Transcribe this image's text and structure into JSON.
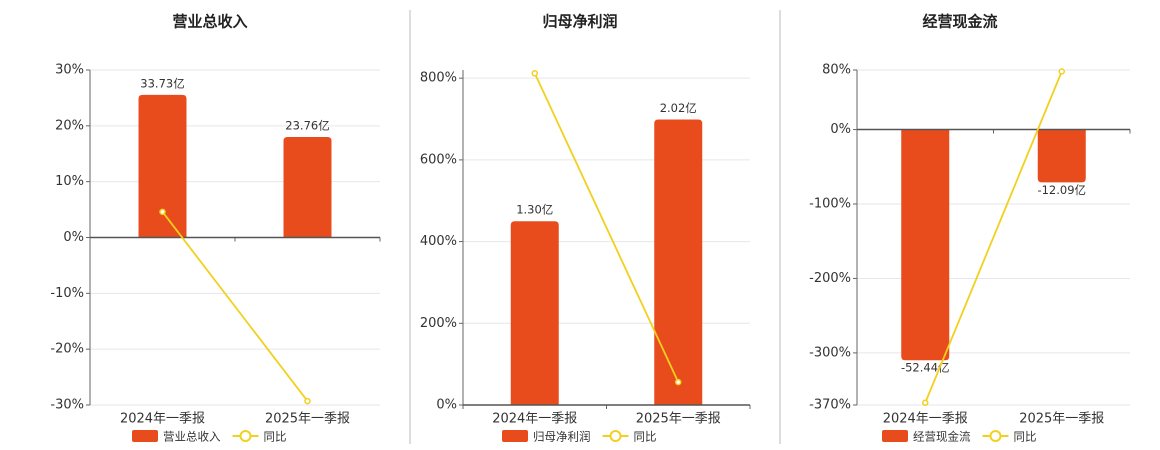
{
  "chart_data": [
    {
      "type": "bar",
      "title": "营业总收入",
      "categories": [
        "2024年一季报",
        "2025年一季报"
      ],
      "ylim": [
        -30,
        30
      ],
      "yticks": [
        {
          "value": -30,
          "label": "-30%"
        },
        {
          "value": -20,
          "label": "-20%"
        },
        {
          "value": -10,
          "label": "-10%"
        },
        {
          "value": 0,
          "label": "0%"
        },
        {
          "value": 10,
          "label": "10%"
        },
        {
          "value": 20,
          "label": "20%"
        },
        {
          "value": 30,
          "label": "30%"
        }
      ],
      "y2lim": [
        -39.6,
        39.6
      ],
      "grid": true,
      "series": [
        {
          "name": "营业总收入",
          "type": "bar",
          "axis": "y2",
          "color": "#e84c1c",
          "values": [
            33.73,
            23.76
          ],
          "value_labels": [
            "33.73亿",
            "23.76亿"
          ]
        },
        {
          "name": "同比",
          "type": "line",
          "color": "#f2d01e",
          "values": [
            4.6,
            -29.3
          ]
        }
      ]
    },
    {
      "type": "bar",
      "title": "归母净利润",
      "categories": [
        "2024年一季报",
        "2025年一季报"
      ],
      "ylim": [
        0,
        820
      ],
      "yticks": [
        {
          "value": 0,
          "label": "0%"
        },
        {
          "value": 200,
          "label": "200%"
        },
        {
          "value": 400,
          "label": "400%"
        },
        {
          "value": 600,
          "label": "600%"
        },
        {
          "value": 800,
          "label": "800%"
        }
      ],
      "y2lim": [
        0,
        2.37
      ],
      "grid": true,
      "series": [
        {
          "name": "归母净利润",
          "type": "bar",
          "axis": "y2",
          "color": "#e84c1c",
          "values": [
            1.3,
            2.02
          ],
          "value_labels": [
            "1.30亿",
            "2.02亿"
          ]
        },
        {
          "name": "同比",
          "type": "line",
          "color": "#f2d01e",
          "values": [
            812,
            56
          ]
        }
      ]
    },
    {
      "type": "bar",
      "title": "经营现金流",
      "categories": [
        "2024年一季报",
        "2025年一季报"
      ],
      "ylim": [
        -370,
        80
      ],
      "yticks": [
        {
          "value": -370,
          "label": "-370%"
        },
        {
          "value": -300,
          "label": "-300%"
        },
        {
          "value": -200,
          "label": "-200%"
        },
        {
          "value": -100,
          "label": "-100%"
        },
        {
          "value": 0,
          "label": "0%"
        },
        {
          "value": 80,
          "label": "80%"
        }
      ],
      "y2lim": [
        -62.6,
        13.4
      ],
      "grid": true,
      "series": [
        {
          "name": "经营现金流",
          "type": "bar",
          "axis": "y2",
          "color": "#e84c1c",
          "values": [
            -52.44,
            -12.09
          ],
          "value_labels": [
            "-52.44亿",
            "-12.09亿"
          ]
        },
        {
          "name": "同比",
          "type": "line",
          "color": "#f2d01e",
          "values": [
            -367,
            78
          ]
        }
      ]
    }
  ]
}
